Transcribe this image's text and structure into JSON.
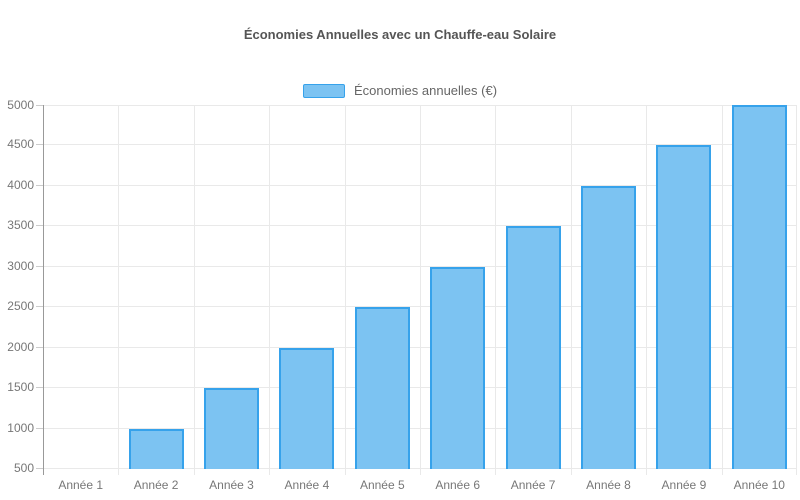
{
  "chart_data": {
    "type": "bar",
    "title": "Économies Annuelles avec un Chauffe-eau Solaire",
    "categories": [
      "Année 1",
      "Année 2",
      "Année 3",
      "Année 4",
      "Année 5",
      "Année 6",
      "Année 7",
      "Année 8",
      "Année 9",
      "Année 10"
    ],
    "series": [
      {
        "name": "Économies annuelles (€)",
        "values": [
          500,
          1000,
          1500,
          2000,
          2500,
          3000,
          3500,
          4000,
          4500,
          5000
        ]
      }
    ],
    "xlabel": "",
    "ylabel": "",
    "ylim": [
      500,
      5000
    ],
    "ytick_step": 500,
    "yticks": [
      500,
      1000,
      1500,
      2000,
      2500,
      3000,
      3500,
      4000,
      4500,
      5000
    ],
    "grid": true,
    "legend_position": "top-center",
    "colors": {
      "bar_fill": "#7cc3f2",
      "bar_border": "#36a2eb",
      "grid_line": "#e9e9e9",
      "axis_line": "#999999",
      "tick_mark": "#cccccc",
      "tick_text": "#777777",
      "title_text": "#555555",
      "legend_text": "#666666",
      "background": "#ffffff"
    }
  }
}
